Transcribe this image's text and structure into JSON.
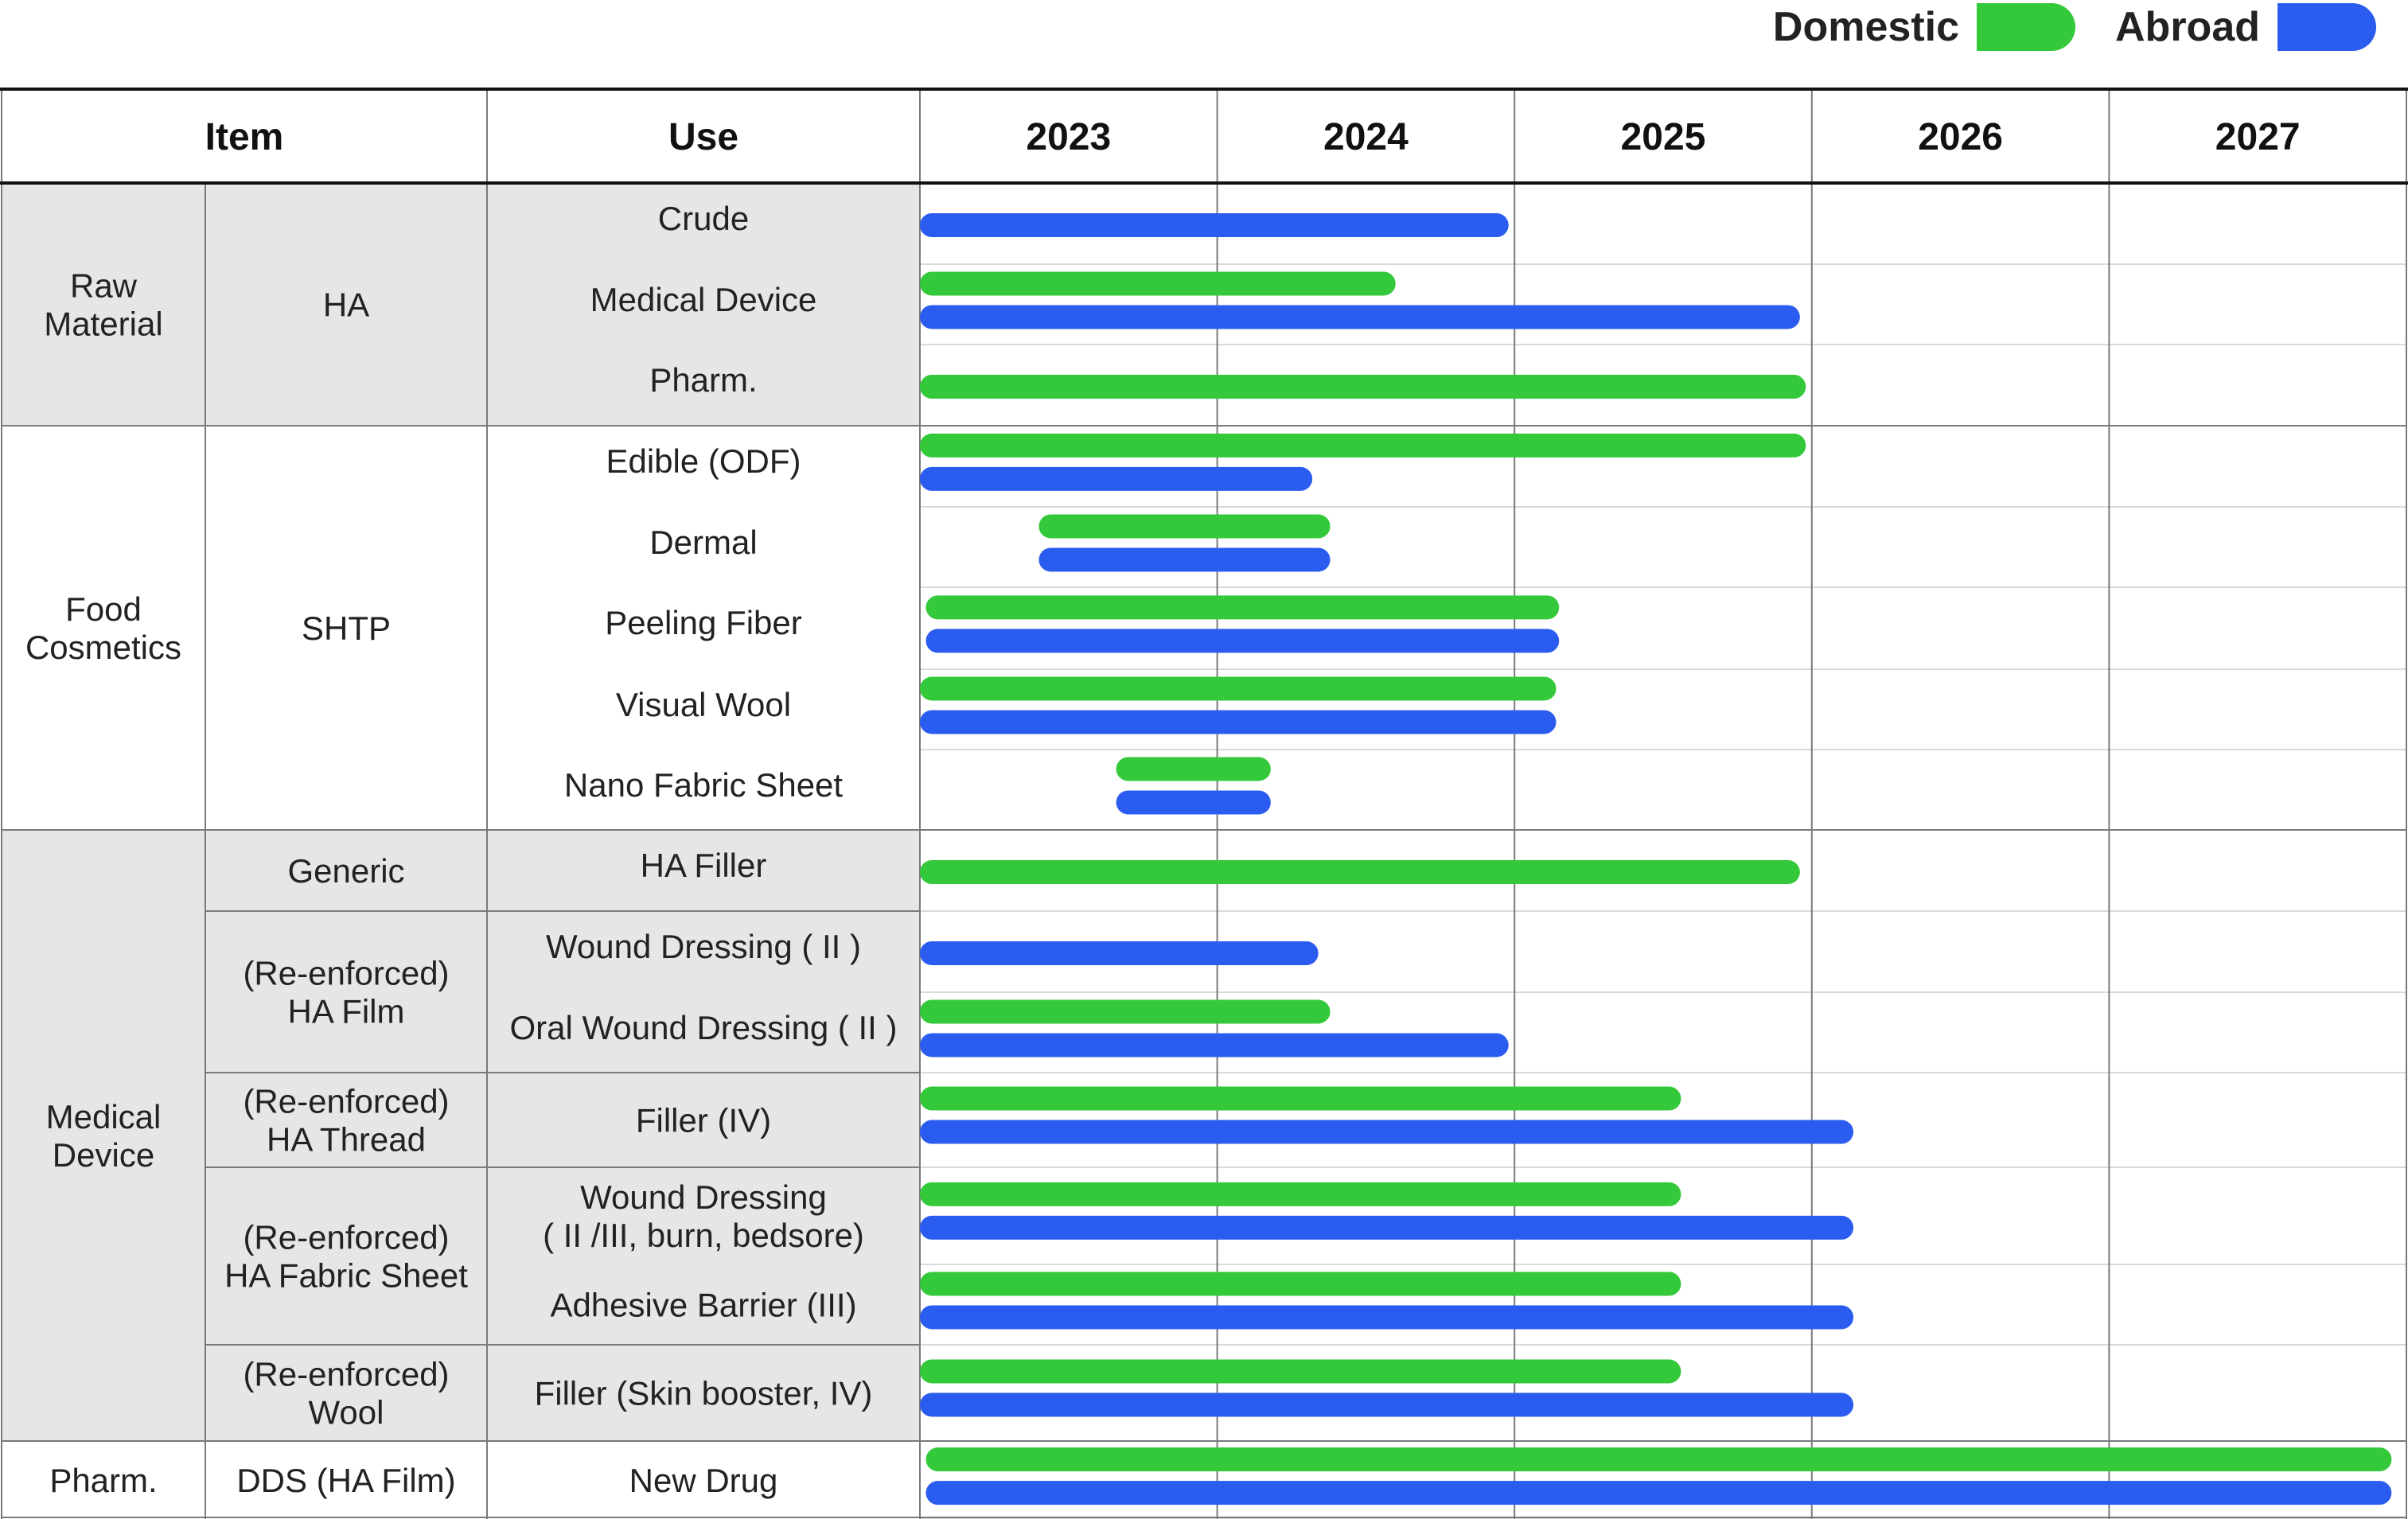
{
  "legend": {
    "domestic_label": "Domestic",
    "abroad_label": "Abroad"
  },
  "colors": {
    "domestic": "#33c93a",
    "abroad": "#2b5cf0",
    "shaded_cell": "#e7e5e6",
    "grid": "#7a7a7a"
  },
  "header": {
    "item": "Item",
    "use": "Use",
    "years": [
      "2023",
      "2024",
      "2025",
      "2026",
      "2027"
    ]
  },
  "categories": [
    {
      "label": [
        "Raw",
        "Material"
      ],
      "shaded": true
    },
    {
      "label": [
        "Food",
        "Cosmetics"
      ],
      "shaded": false
    },
    {
      "label": [
        "Medical",
        "Device"
      ],
      "shaded": true
    },
    {
      "label": [
        "Pharm."
      ],
      "shaded": false
    }
  ],
  "items": [
    {
      "label": [
        "HA"
      ],
      "shaded": true
    },
    {
      "label": [
        "SHTP"
      ],
      "shaded": false
    },
    {
      "label": [
        "Generic"
      ],
      "shaded": true
    },
    {
      "label": [
        "(Re-enforced)",
        "HA Film"
      ],
      "shaded": true
    },
    {
      "label": [
        "(Re-enforced)",
        "HA Thread"
      ],
      "shaded": true
    },
    {
      "label": [
        "(Re-enforced)",
        "HA Fabric Sheet"
      ],
      "shaded": true
    },
    {
      "label": [
        "(Re-enforced)",
        "Wool"
      ],
      "shaded": true
    },
    {
      "label": [
        "DDS (HA Film)"
      ],
      "shaded": false
    }
  ],
  "rows": [
    {
      "use": [
        "Crude"
      ],
      "domestic": null,
      "abroad": [
        2023.0,
        2024.98
      ]
    },
    {
      "use": [
        "Medical Device"
      ],
      "domestic": [
        2023.0,
        2024.6
      ],
      "abroad": [
        2023.0,
        2025.96
      ]
    },
    {
      "use": [
        "Pharm."
      ],
      "domestic": [
        2023.0,
        2025.98
      ],
      "abroad": null
    },
    {
      "use": [
        "Edible (ODF)"
      ],
      "domestic": [
        2023.0,
        2025.98
      ],
      "abroad": [
        2023.0,
        2024.32
      ]
    },
    {
      "use": [
        "Dermal"
      ],
      "domestic": [
        2023.4,
        2024.38
      ],
      "abroad": [
        2023.4,
        2024.38
      ]
    },
    {
      "use": [
        "Peeling Fiber"
      ],
      "domestic": [
        2023.02,
        2025.15
      ],
      "abroad": [
        2023.02,
        2025.15
      ]
    },
    {
      "use": [
        "Visual Wool"
      ],
      "domestic": [
        2023.0,
        2025.14
      ],
      "abroad": [
        2023.0,
        2025.14
      ]
    },
    {
      "use": [
        "Nano Fabric Sheet"
      ],
      "domestic": [
        2023.66,
        2024.18
      ],
      "abroad": [
        2023.66,
        2024.18
      ]
    },
    {
      "use": [
        "HA Filler"
      ],
      "domestic": [
        2023.0,
        2025.96
      ],
      "abroad": null
    },
    {
      "use": [
        "Wound Dressing ( II )"
      ],
      "domestic": null,
      "abroad": [
        2023.0,
        2024.34
      ]
    },
    {
      "use": [
        "Oral Wound Dressing ( II )"
      ],
      "domestic": [
        2023.0,
        2024.38
      ],
      "abroad": [
        2023.0,
        2024.98
      ]
    },
    {
      "use": [
        "Filler (IV)"
      ],
      "domestic": [
        2023.0,
        2025.56
      ],
      "abroad": [
        2023.0,
        2026.14
      ]
    },
    {
      "use": [
        "Wound Dressing",
        "( II /III, burn, bedsore)"
      ],
      "domestic": [
        2023.0,
        2025.56
      ],
      "abroad": [
        2023.0,
        2026.14
      ]
    },
    {
      "use": [
        "Adhesive Barrier (III)"
      ],
      "domestic": [
        2023.0,
        2025.56
      ],
      "abroad": [
        2023.0,
        2026.14
      ]
    },
    {
      "use": [
        "Filler (Skin booster, IV)"
      ],
      "domestic": [
        2023.0,
        2025.56
      ],
      "abroad": [
        2023.0,
        2026.14
      ]
    },
    {
      "use": [
        "New Drug"
      ],
      "domestic": [
        2023.02,
        2027.95
      ],
      "abroad": [
        2023.02,
        2027.95
      ]
    }
  ]
}
